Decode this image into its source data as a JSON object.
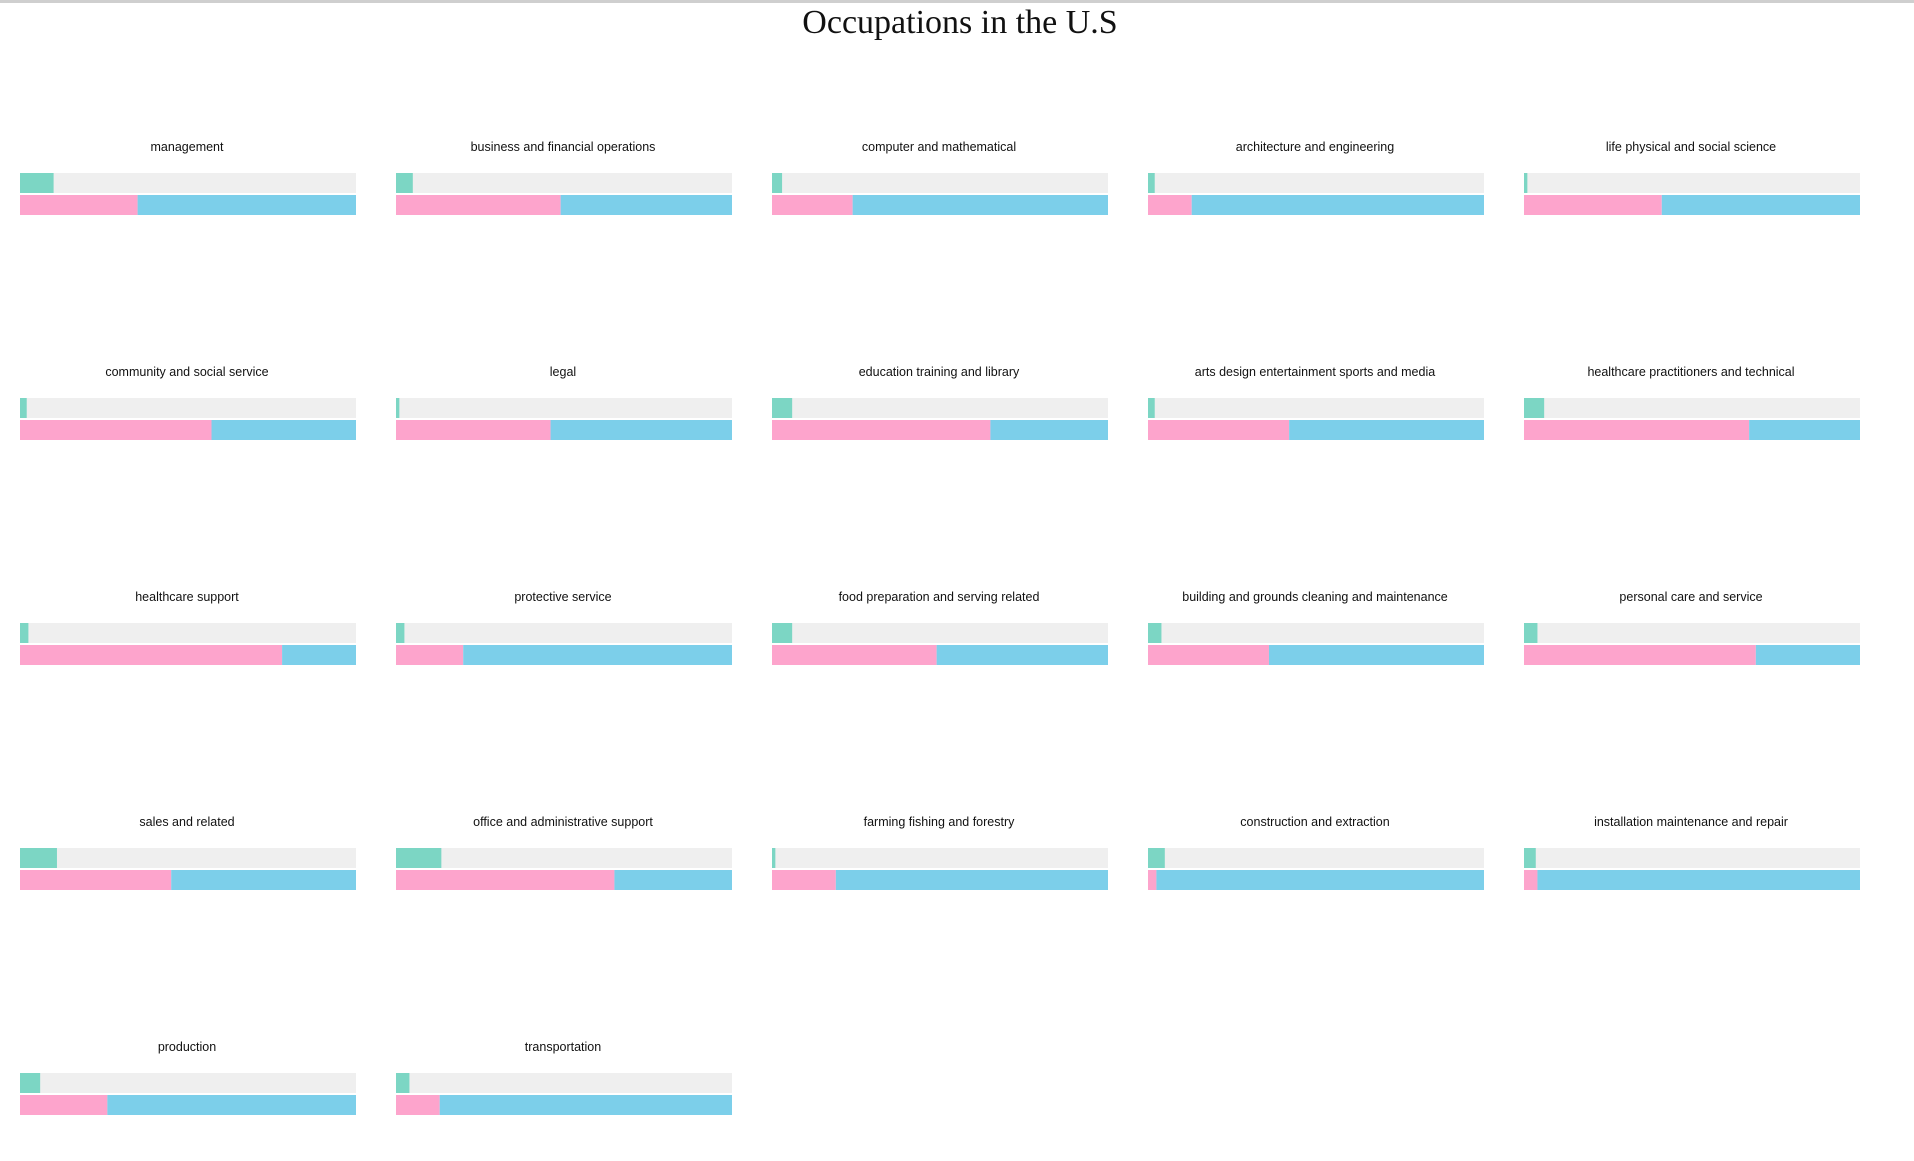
{
  "title": "Occupations in the U.S",
  "colors": {
    "share": "#7cd6c4",
    "track": "#efefef",
    "female": "#fda4cc",
    "male": "#7ccfea"
  },
  "chart_data": {
    "type": "bar",
    "title": "Occupations in the U.S",
    "legend": "none",
    "grid": false,
    "panels": [
      {
        "name": "management",
        "share": 0.1,
        "female": 0.35
      },
      {
        "name": "business and financial operations",
        "share": 0.05,
        "female": 0.49
      },
      {
        "name": "computer and mathematical",
        "share": 0.03,
        "female": 0.24
      },
      {
        "name": "architecture and engineering",
        "share": 0.02,
        "female": 0.13
      },
      {
        "name": "life physical and social science",
        "share": 0.01,
        "female": 0.41
      },
      {
        "name": "community and social service",
        "share": 0.02,
        "female": 0.57
      },
      {
        "name": "legal",
        "share": 0.01,
        "female": 0.46
      },
      {
        "name": "education training and library",
        "share": 0.06,
        "female": 0.65
      },
      {
        "name": "arts design entertainment sports and media",
        "share": 0.02,
        "female": 0.42
      },
      {
        "name": "healthcare practitioners and technical",
        "share": 0.06,
        "female": 0.67
      },
      {
        "name": "healthcare support",
        "share": 0.025,
        "female": 0.78
      },
      {
        "name": "protective service",
        "share": 0.025,
        "female": 0.2
      },
      {
        "name": "food preparation and serving related",
        "share": 0.06,
        "female": 0.49
      },
      {
        "name": "building and grounds cleaning and maintenance",
        "share": 0.04,
        "female": 0.36
      },
      {
        "name": "personal care and service",
        "share": 0.04,
        "female": 0.69
      },
      {
        "name": "sales and related",
        "share": 0.11,
        "female": 0.45
      },
      {
        "name": "office and administrative support",
        "share": 0.135,
        "female": 0.65
      },
      {
        "name": "farming fishing and forestry",
        "share": 0.01,
        "female": 0.19
      },
      {
        "name": "construction and extraction",
        "share": 0.05,
        "female": 0.025
      },
      {
        "name": "installation maintenance and repair",
        "share": 0.035,
        "female": 0.04
      },
      {
        "name": "production",
        "share": 0.06,
        "female": 0.26
      },
      {
        "name": "transportation",
        "share": 0.04,
        "female": 0.13
      }
    ]
  }
}
